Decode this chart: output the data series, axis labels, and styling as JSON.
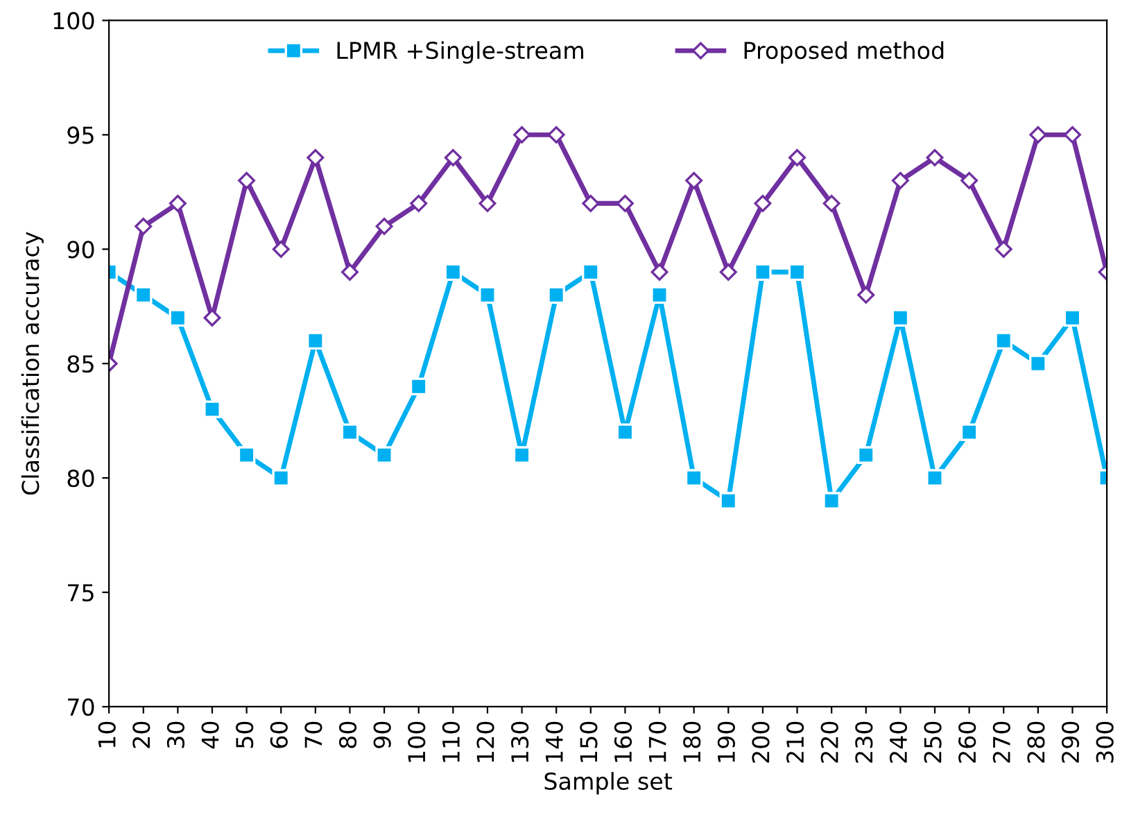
{
  "chart_data": {
    "type": "line",
    "xlabel": "Sample set",
    "ylabel": "Classification accuracy",
    "categories": [
      "10",
      "20",
      "30",
      "40",
      "50",
      "60",
      "70",
      "80",
      "90",
      "100",
      "110",
      "120",
      "130",
      "140",
      "150",
      "160",
      "170",
      "180",
      "190",
      "200",
      "210",
      "220",
      "230",
      "240",
      "250",
      "260",
      "270",
      "280",
      "290",
      "300"
    ],
    "series": [
      {
        "name": "LPMR +Single-stream",
        "color": "#00b0f0",
        "marker": "square",
        "values": [
          89,
          88,
          87,
          83,
          81,
          80,
          86,
          82,
          81,
          84,
          89,
          88,
          81,
          88,
          89,
          82,
          88,
          80,
          79,
          89,
          89,
          79,
          81,
          87,
          80,
          82,
          86,
          85,
          87,
          80
        ]
      },
      {
        "name": "Proposed method",
        "color": "#7030a0",
        "marker": "diamond",
        "values": [
          85,
          91,
          92,
          87,
          93,
          90,
          94,
          89,
          91,
          92,
          94,
          92,
          95,
          95,
          92,
          92,
          89,
          93,
          89,
          92,
          94,
          92,
          88,
          93,
          94,
          93,
          90,
          95,
          95,
          89
        ]
      }
    ],
    "ylim": [
      70,
      100
    ],
    "yticks": [
      70,
      75,
      80,
      85,
      90,
      95,
      100
    ],
    "legend": "top",
    "line_style": "solid"
  }
}
